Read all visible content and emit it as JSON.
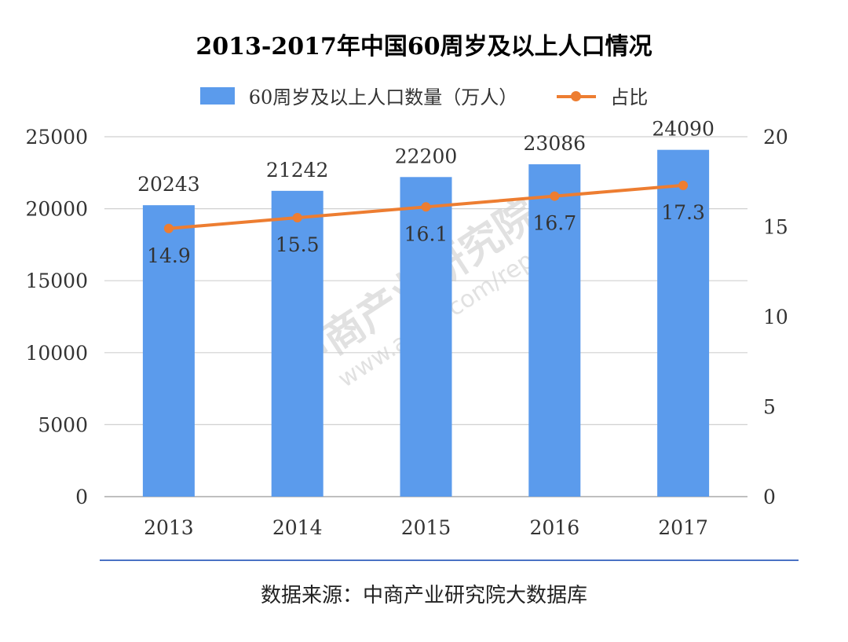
{
  "chart_data": {
    "type": "bar",
    "title": "2013-2017年中国60周岁及以上人口情况",
    "categories": [
      "2013",
      "2014",
      "2015",
      "2016",
      "2017"
    ],
    "series": [
      {
        "name": "60周岁及以上人口数量（万人）",
        "type": "bar",
        "axis": "left",
        "color": "#5b9bec",
        "values": [
          20243,
          21242,
          22200,
          23086,
          24090
        ],
        "labels": [
          "20243",
          "21242",
          "22200",
          "23086",
          "24090"
        ]
      },
      {
        "name": "占比",
        "type": "line",
        "axis": "right",
        "color": "#ed7d31",
        "values": [
          14.9,
          15.5,
          16.1,
          16.7,
          17.3
        ],
        "labels": [
          "14.9",
          "15.5",
          "16.1",
          "16.7",
          "17.3"
        ]
      }
    ],
    "ylim_left": [
      0,
      25000
    ],
    "yticks_left": [
      "0",
      "5000",
      "10000",
      "15000",
      "20000",
      "25000"
    ],
    "ylim_right": [
      0,
      20
    ],
    "yticks_right": [
      "0",
      "5",
      "10",
      "15",
      "20"
    ],
    "grid": true,
    "legend": "top"
  },
  "source": "数据来源：中商产业研究院大数据库",
  "watermark": {
    "name": "中商产业研究院",
    "url": "www.askci.com/reports/"
  }
}
